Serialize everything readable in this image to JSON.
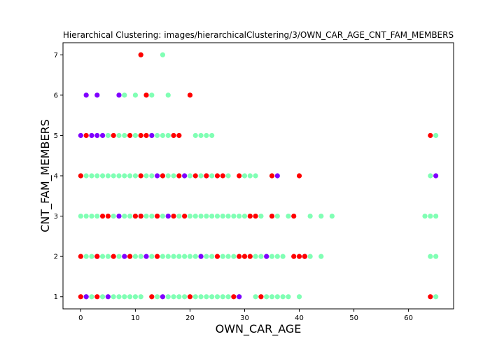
{
  "chart_data": {
    "type": "scatter",
    "title": "Hierarchical Clustering: images/hierarchicalClustering/3/OWN_CAR_AGE_CNT_FAM_MEMBERS",
    "xlabel": "OWN_CAR_AGE",
    "ylabel": "CNT_FAM_MEMBERS",
    "xlim": [
      -3.25,
      68.25
    ],
    "ylim": [
      0.7,
      7.3
    ],
    "xticks": [
      0,
      10,
      20,
      30,
      40,
      50,
      60
    ],
    "yticks": [
      1,
      2,
      3,
      4,
      5,
      6,
      7
    ],
    "grid": false,
    "colors": {
      "cluster-purple": "#8000ff",
      "cluster-green": "#80ffb4",
      "cluster-red": "#ff0000"
    },
    "points": {
      "cluster-green": [
        [
          11,
          7
        ],
        [
          15,
          7
        ],
        [
          8,
          6
        ],
        [
          10,
          6
        ],
        [
          13,
          6
        ],
        [
          16,
          6
        ],
        [
          5,
          5
        ],
        [
          7,
          5
        ],
        [
          8,
          5
        ],
        [
          10,
          5
        ],
        [
          13,
          5
        ],
        [
          14,
          5
        ],
        [
          15,
          5
        ],
        [
          16,
          5
        ],
        [
          21,
          5
        ],
        [
          22,
          5
        ],
        [
          23,
          5
        ],
        [
          24,
          5
        ],
        [
          65,
          5
        ],
        [
          0,
          4
        ],
        [
          1,
          4
        ],
        [
          2,
          4
        ],
        [
          3,
          4
        ],
        [
          4,
          4
        ],
        [
          5,
          4
        ],
        [
          6,
          4
        ],
        [
          7,
          4
        ],
        [
          8,
          4
        ],
        [
          9,
          4
        ],
        [
          10,
          4
        ],
        [
          12,
          4
        ],
        [
          13,
          4
        ],
        [
          15,
          4
        ],
        [
          16,
          4
        ],
        [
          17,
          4
        ],
        [
          19,
          4
        ],
        [
          20,
          4
        ],
        [
          22,
          4
        ],
        [
          24,
          4
        ],
        [
          27,
          4
        ],
        [
          30,
          4
        ],
        [
          31,
          4
        ],
        [
          32,
          4
        ],
        [
          35,
          4
        ],
        [
          64,
          4
        ],
        [
          0,
          3
        ],
        [
          1,
          3
        ],
        [
          2,
          3
        ],
        [
          3,
          3
        ],
        [
          6,
          3
        ],
        [
          8,
          3
        ],
        [
          9,
          3
        ],
        [
          10,
          3
        ],
        [
          12,
          3
        ],
        [
          13,
          3
        ],
        [
          14,
          3
        ],
        [
          15,
          3
        ],
        [
          16,
          3
        ],
        [
          18,
          3
        ],
        [
          20,
          3
        ],
        [
          21,
          3
        ],
        [
          22,
          3
        ],
        [
          23,
          3
        ],
        [
          24,
          3
        ],
        [
          25,
          3
        ],
        [
          26,
          3
        ],
        [
          27,
          3
        ],
        [
          28,
          3
        ],
        [
          29,
          3
        ],
        [
          30,
          3
        ],
        [
          33,
          3
        ],
        [
          36,
          3
        ],
        [
          38,
          3
        ],
        [
          42,
          3
        ],
        [
          44,
          3
        ],
        [
          46,
          3
        ],
        [
          63,
          3
        ],
        [
          64,
          3
        ],
        [
          65,
          3
        ],
        [
          1,
          2
        ],
        [
          2,
          2
        ],
        [
          4,
          2
        ],
        [
          5,
          2
        ],
        [
          7,
          2
        ],
        [
          9,
          2
        ],
        [
          10,
          2
        ],
        [
          11,
          2
        ],
        [
          13,
          2
        ],
        [
          15,
          2
        ],
        [
          16,
          2
        ],
        [
          17,
          2
        ],
        [
          18,
          2
        ],
        [
          19,
          2
        ],
        [
          20,
          2
        ],
        [
          21,
          2
        ],
        [
          22,
          2
        ],
        [
          23,
          2
        ],
        [
          24,
          2
        ],
        [
          26,
          2
        ],
        [
          27,
          2
        ],
        [
          28,
          2
        ],
        [
          30,
          2
        ],
        [
          32,
          2
        ],
        [
          33,
          2
        ],
        [
          34,
          2
        ],
        [
          35,
          2
        ],
        [
          36,
          2
        ],
        [
          37,
          2
        ],
        [
          42,
          2
        ],
        [
          44,
          2
        ],
        [
          64,
          2
        ],
        [
          65,
          2
        ],
        [
          1,
          1
        ],
        [
          2,
          1
        ],
        [
          4,
          1
        ],
        [
          6,
          1
        ],
        [
          7,
          1
        ],
        [
          8,
          1
        ],
        [
          9,
          1
        ],
        [
          10,
          1
        ],
        [
          11,
          1
        ],
        [
          14,
          1
        ],
        [
          16,
          1
        ],
        [
          17,
          1
        ],
        [
          18,
          1
        ],
        [
          19,
          1
        ],
        [
          21,
          1
        ],
        [
          22,
          1
        ],
        [
          23,
          1
        ],
        [
          24,
          1
        ],
        [
          25,
          1
        ],
        [
          26,
          1
        ],
        [
          27,
          1
        ],
        [
          29,
          1
        ],
        [
          32,
          1
        ],
        [
          34,
          1
        ],
        [
          35,
          1
        ],
        [
          36,
          1
        ],
        [
          37,
          1
        ],
        [
          38,
          1
        ],
        [
          40,
          1
        ],
        [
          65,
          1
        ]
      ],
      "cluster-purple": [
        [
          1,
          6
        ],
        [
          3,
          6
        ],
        [
          7,
          6
        ],
        [
          0,
          5
        ],
        [
          2,
          5
        ],
        [
          3,
          5
        ],
        [
          4,
          5
        ],
        [
          13,
          5
        ],
        [
          14,
          4
        ],
        [
          19,
          4
        ],
        [
          23,
          4
        ],
        [
          36,
          4
        ],
        [
          65,
          4
        ],
        [
          7,
          3
        ],
        [
          11,
          3
        ],
        [
          16,
          3
        ],
        [
          3,
          2
        ],
        [
          8,
          2
        ],
        [
          12,
          2
        ],
        [
          22,
          2
        ],
        [
          34,
          2
        ],
        [
          41,
          2
        ],
        [
          1,
          1
        ],
        [
          5,
          1
        ],
        [
          15,
          1
        ],
        [
          29,
          1
        ]
      ],
      "cluster-red": [
        [
          11,
          7
        ],
        [
          12,
          6
        ],
        [
          20,
          6
        ],
        [
          1,
          5
        ],
        [
          6,
          5
        ],
        [
          9,
          5
        ],
        [
          11,
          5
        ],
        [
          12,
          5
        ],
        [
          17,
          5
        ],
        [
          18,
          5
        ],
        [
          64,
          5
        ],
        [
          0,
          4
        ],
        [
          11,
          4
        ],
        [
          15,
          4
        ],
        [
          18,
          4
        ],
        [
          21,
          4
        ],
        [
          23,
          4
        ],
        [
          25,
          4
        ],
        [
          26,
          4
        ],
        [
          29,
          4
        ],
        [
          35,
          4
        ],
        [
          40,
          4
        ],
        [
          4,
          3
        ],
        [
          5,
          3
        ],
        [
          10,
          3
        ],
        [
          11,
          3
        ],
        [
          14,
          3
        ],
        [
          17,
          3
        ],
        [
          19,
          3
        ],
        [
          31,
          3
        ],
        [
          32,
          3
        ],
        [
          35,
          3
        ],
        [
          39,
          3
        ],
        [
          0,
          2
        ],
        [
          3,
          2
        ],
        [
          6,
          2
        ],
        [
          9,
          2
        ],
        [
          14,
          2
        ],
        [
          25,
          2
        ],
        [
          29,
          2
        ],
        [
          30,
          2
        ],
        [
          31,
          2
        ],
        [
          39,
          2
        ],
        [
          40,
          2
        ],
        [
          41,
          2
        ],
        [
          0,
          1
        ],
        [
          3,
          1
        ],
        [
          13,
          1
        ],
        [
          20,
          1
        ],
        [
          28,
          1
        ],
        [
          33,
          1
        ],
        [
          64,
          1
        ]
      ]
    }
  }
}
